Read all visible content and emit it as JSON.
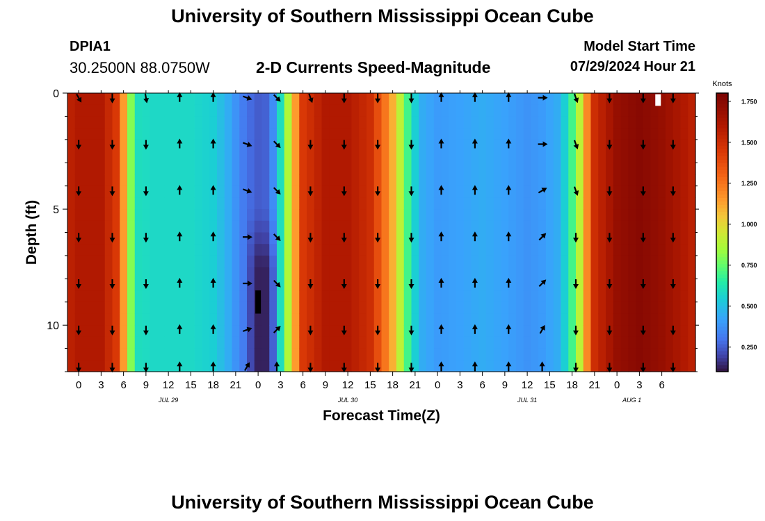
{
  "header": {
    "title": "University of Southern Mississippi Ocean Cube",
    "station": "DPIA1",
    "coords": "30.2500N  88.0750W",
    "subtitle": "2-D Currents Speed-Magnitude",
    "model_start_label": "Model Start Time",
    "model_start_value": "07/29/2024 Hour 21"
  },
  "footer": {
    "title": "University of Southern Mississippi Ocean Cube"
  },
  "chart_data": {
    "type": "heatmap",
    "title": "2-D Currents Speed-Magnitude",
    "xlabel": "Forecast Time(Z)",
    "ylabel": "Depth (ft)",
    "x_hours_from_jul29_00z": [
      -1.5,
      82.5
    ],
    "ylim": [
      0,
      12
    ],
    "x_tick_hours": [
      0,
      3,
      6,
      9,
      12,
      15,
      18,
      21,
      24,
      27,
      30,
      33,
      36,
      39,
      42,
      45,
      48,
      51,
      54,
      57,
      60,
      63,
      66,
      69,
      72,
      75,
      78
    ],
    "x_tick_labels": [
      "0",
      "3",
      "6",
      "9",
      "12",
      "15",
      "18",
      "21",
      "0",
      "3",
      "6",
      "9",
      "12",
      "15",
      "18",
      "21",
      "0",
      "3",
      "6",
      "9",
      "12",
      "15",
      "18",
      "21",
      "0",
      "3",
      "6"
    ],
    "y_ticks": [
      0,
      5,
      10
    ],
    "y_tick_labels": [
      "0",
      "5",
      "10"
    ],
    "dates": [
      {
        "hour": 12,
        "label": "JUL 29"
      },
      {
        "hour": 36,
        "label": "JUL 30"
      },
      {
        "hour": 60,
        "label": "JUL 31"
      },
      {
        "hour": 74,
        "label": "AUG 1"
      }
    ],
    "speed_profile_hours": [
      -1.5,
      0,
      3,
      5,
      6,
      7,
      8,
      10,
      15,
      18,
      20,
      21,
      22,
      23.5,
      24.5,
      25.5,
      26.5,
      27.5,
      28.5,
      29,
      30,
      33,
      36,
      39,
      41,
      42,
      43,
      44,
      45,
      46,
      48,
      51,
      54,
      57,
      60,
      62,
      64,
      65,
      66,
      67,
      68,
      69,
      72,
      75,
      78,
      81,
      82.5
    ],
    "speed_profile_knots": [
      1.55,
      1.6,
      1.6,
      1.45,
      1.15,
      0.8,
      0.6,
      0.58,
      0.58,
      0.55,
      0.45,
      0.38,
      0.32,
      0.26,
      0.24,
      0.28,
      0.45,
      0.75,
      1.0,
      1.15,
      1.45,
      1.6,
      1.6,
      1.5,
      1.25,
      1.1,
      0.9,
      0.7,
      0.55,
      0.45,
      0.4,
      0.42,
      0.45,
      0.42,
      0.38,
      0.4,
      0.45,
      0.55,
      0.7,
      0.9,
      1.2,
      1.5,
      1.7,
      1.75,
      1.7,
      1.6,
      1.55
    ],
    "low_speed_core": {
      "center_hour": 24.5,
      "depth_range_ft": [
        5,
        12
      ],
      "min_knots": 0.1
    },
    "arrow_columns_hours": [
      0,
      4.5,
      9,
      13.5,
      18,
      22.5,
      26.5,
      31,
      35.5,
      40,
      44.5,
      48.5,
      53,
      57.5,
      62,
      66.5,
      71,
      75.5,
      79.5
    ],
    "arrow_rows_ft": [
      0.2,
      2.2,
      4.2,
      6.2,
      8.2,
      10.2,
      11.8
    ],
    "arrow_directions_deg": [
      [
        150,
        180,
        180,
        180,
        180,
        180,
        180
      ],
      [
        180,
        180,
        180,
        180,
        180,
        180,
        180
      ],
      [
        170,
        180,
        180,
        180,
        180,
        180,
        180
      ],
      [
        0,
        0,
        0,
        0,
        0,
        0,
        0
      ],
      [
        0,
        0,
        0,
        0,
        0,
        0,
        0
      ],
      [
        110,
        110,
        110,
        90,
        90,
        70,
        30
      ],
      [
        135,
        135,
        135,
        135,
        135,
        45,
        0
      ],
      [
        160,
        180,
        180,
        180,
        180,
        180,
        180
      ],
      [
        180,
        180,
        180,
        180,
        180,
        180,
        180
      ],
      [
        180,
        180,
        180,
        180,
        180,
        180,
        180
      ],
      [
        180,
        180,
        180,
        180,
        180,
        180,
        180
      ],
      [
        0,
        0,
        0,
        0,
        0,
        0,
        0
      ],
      [
        0,
        0,
        0,
        0,
        0,
        0,
        0
      ],
      [
        0,
        0,
        0,
        0,
        0,
        0,
        0
      ],
      [
        90,
        90,
        60,
        45,
        45,
        30,
        0
      ],
      [
        160,
        160,
        160,
        180,
        180,
        180,
        180
      ],
      [
        180,
        180,
        180,
        180,
        180,
        180,
        180
      ],
      [
        180,
        180,
        180,
        180,
        180,
        180,
        180
      ],
      [
        180,
        180,
        180,
        180,
        180,
        180,
        180
      ]
    ],
    "colorbar": {
      "label": "Knots",
      "range": [
        0.1,
        1.8
      ],
      "ticks": [
        0.25,
        0.5,
        0.75,
        1.0,
        1.25,
        1.5,
        1.75
      ],
      "tick_labels": [
        "0.250",
        "0.500",
        "0.750",
        "1.000",
        "1.250",
        "1.500",
        "1.750"
      ],
      "stops": [
        {
          "v": 0.1,
          "color": "#30123b"
        },
        {
          "v": 0.2,
          "color": "#4145ab"
        },
        {
          "v": 0.3,
          "color": "#4675ed"
        },
        {
          "v": 0.42,
          "color": "#39a2fc"
        },
        {
          "v": 0.55,
          "color": "#1bcfd4"
        },
        {
          "v": 0.65,
          "color": "#24eca6"
        },
        {
          "v": 0.75,
          "color": "#61fc6c"
        },
        {
          "v": 0.85,
          "color": "#a4fc3b"
        },
        {
          "v": 0.95,
          "color": "#d1e834"
        },
        {
          "v": 1.05,
          "color": "#f3c63a"
        },
        {
          "v": 1.15,
          "color": "#fe9b2d"
        },
        {
          "v": 1.3,
          "color": "#f36315"
        },
        {
          "v": 1.45,
          "color": "#d93806"
        },
        {
          "v": 1.6,
          "color": "#b11901"
        },
        {
          "v": 1.8,
          "color": "#7a0402"
        }
      ]
    }
  }
}
